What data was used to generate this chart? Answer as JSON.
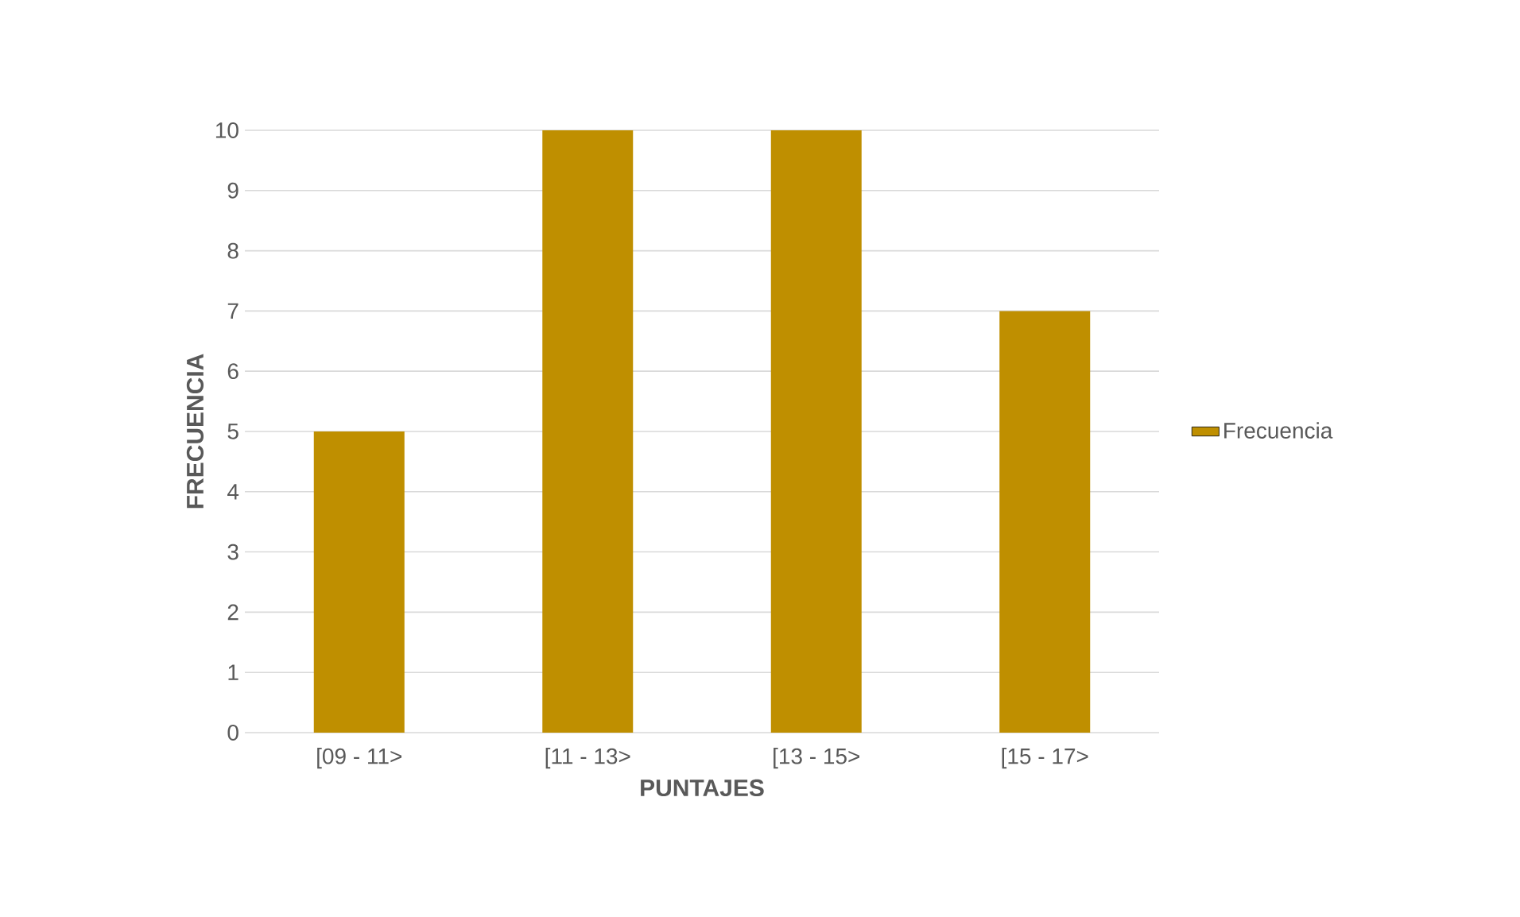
{
  "chart_data": {
    "type": "bar",
    "xlabel": "PUNTAJES",
    "ylabel": "FRECUENCIA",
    "categories": [
      "[09 -  11>",
      "[11 -  13>",
      "[13 -  15>",
      "[15 -  17>"
    ],
    "series": [
      {
        "name": "Frecuencia",
        "color": "#bf8f00",
        "values": [
          5,
          10,
          10,
          7
        ]
      }
    ],
    "ylim": [
      0,
      10
    ],
    "yticks": [
      0,
      1,
      2,
      3,
      4,
      5,
      6,
      7,
      8,
      9,
      10
    ],
    "grid": "y",
    "legend": "right"
  }
}
